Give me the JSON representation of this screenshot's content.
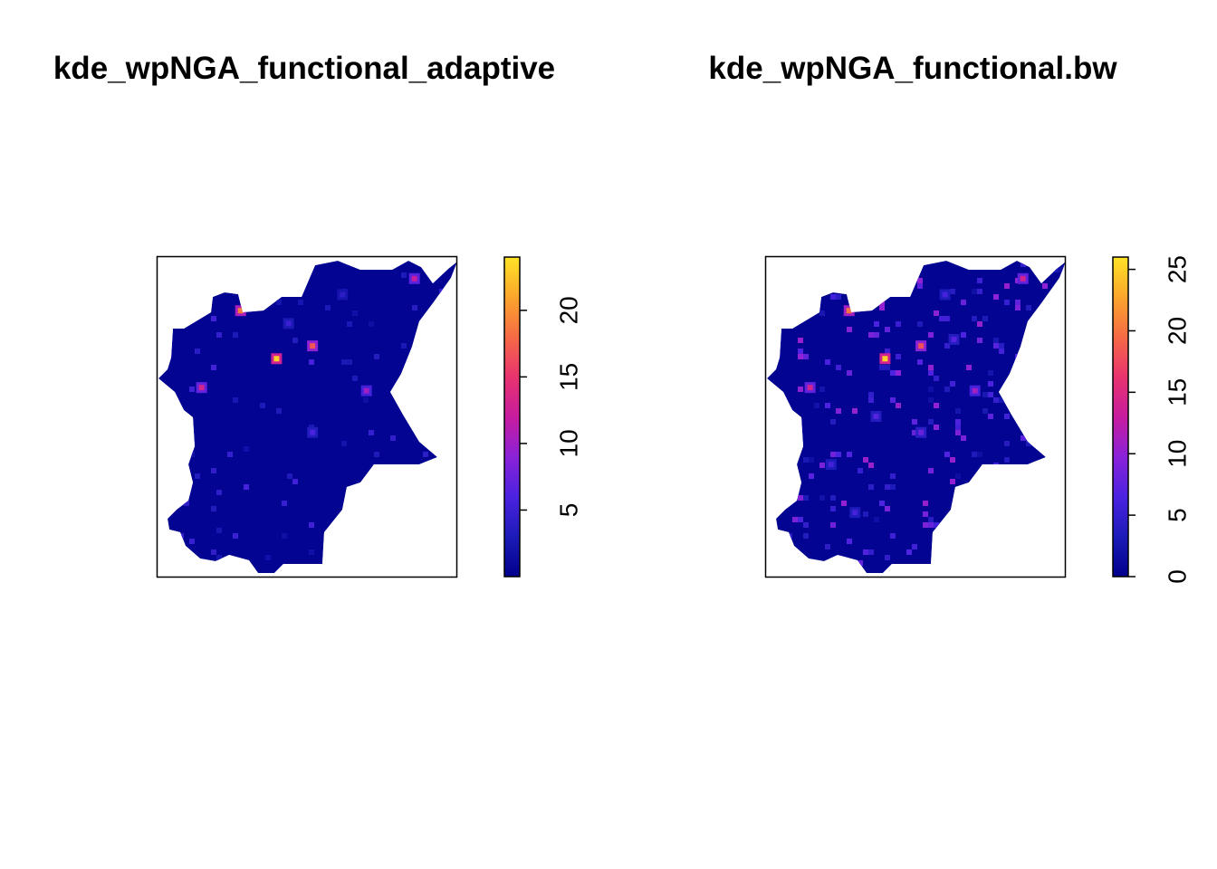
{
  "chart_data": [
    {
      "type": "heatmap",
      "title": "kde_wpNGA_functional_adaptive",
      "xlabel": "",
      "ylabel": "",
      "value_range": [
        0,
        24
      ],
      "legend": {
        "position": "right",
        "orientation": "vertical",
        "ticks": [
          "5",
          "10",
          "15",
          "20"
        ],
        "tick_values": [
          5,
          10,
          15,
          20
        ]
      },
      "colormap": [
        "#00008b",
        "#1c1bb8",
        "#4b22e0",
        "#8a22d8",
        "#c71c9e",
        "#e8336f",
        "#f66a45",
        "#fba62c",
        "#ffe326"
      ],
      "hotspots": [
        {
          "x": 0.28,
          "y": 0.83,
          "value": 19
        },
        {
          "x": 0.4,
          "y": 0.68,
          "value": 23
        },
        {
          "x": 0.52,
          "y": 0.72,
          "value": 17
        },
        {
          "x": 0.15,
          "y": 0.59,
          "value": 13
        },
        {
          "x": 0.7,
          "y": 0.58,
          "value": 10
        },
        {
          "x": 0.86,
          "y": 0.93,
          "value": 12
        },
        {
          "x": 0.52,
          "y": 0.45,
          "value": 6
        },
        {
          "x": 0.44,
          "y": 0.79,
          "value": 5
        },
        {
          "x": 0.62,
          "y": 0.88,
          "value": 4
        },
        {
          "x": 0.65,
          "y": 0.18,
          "value": 4
        }
      ]
    },
    {
      "type": "heatmap",
      "title": "kde_wpNGA_functional.bw",
      "xlabel": "",
      "ylabel": "",
      "value_range": [
        0,
        26
      ],
      "legend": {
        "position": "right",
        "orientation": "vertical",
        "ticks": [
          "0",
          "5",
          "10",
          "15",
          "20",
          "25"
        ],
        "tick_values": [
          0,
          5,
          10,
          15,
          20,
          25
        ]
      },
      "colormap": [
        "#00008b",
        "#1c1bb8",
        "#4b22e0",
        "#8a22d8",
        "#c71c9e",
        "#e8336f",
        "#f66a45",
        "#fba62c",
        "#ffe326"
      ],
      "hotspots": [
        {
          "x": 0.28,
          "y": 0.83,
          "value": 20
        },
        {
          "x": 0.4,
          "y": 0.68,
          "value": 25
        },
        {
          "x": 0.52,
          "y": 0.72,
          "value": 18
        },
        {
          "x": 0.15,
          "y": 0.59,
          "value": 14
        },
        {
          "x": 0.7,
          "y": 0.58,
          "value": 11
        },
        {
          "x": 0.86,
          "y": 0.93,
          "value": 14
        },
        {
          "x": 0.52,
          "y": 0.45,
          "value": 8
        },
        {
          "x": 0.37,
          "y": 0.5,
          "value": 7
        },
        {
          "x": 0.63,
          "y": 0.74,
          "value": 7
        },
        {
          "x": 0.22,
          "y": 0.35,
          "value": 6
        },
        {
          "x": 0.6,
          "y": 0.88,
          "value": 6
        },
        {
          "x": 0.3,
          "y": 0.2,
          "value": 6
        }
      ]
    }
  ]
}
